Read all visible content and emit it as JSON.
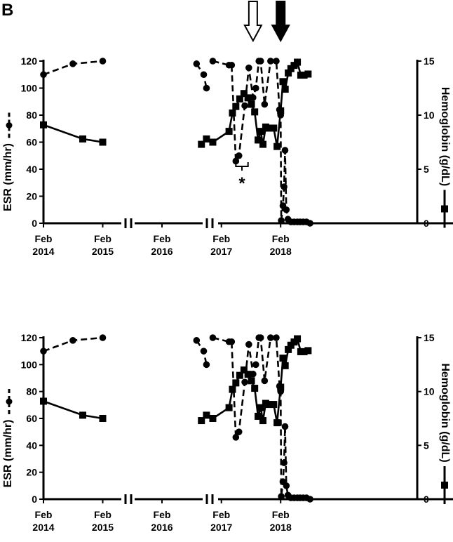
{
  "panel_label": "B",
  "chart_data": [
    {
      "type": "line",
      "title": "",
      "ylabel": "ESR (mm/hr)",
      "y2label": "Hemoglobin (g/dL)",
      "ylim": [
        0,
        120
      ],
      "y2lim": [
        0,
        15
      ],
      "yticks": [
        0,
        20,
        40,
        60,
        80,
        100,
        120
      ],
      "y2ticks": [
        0,
        5,
        10,
        15
      ],
      "axis_breaks": true,
      "xlim": [
        "2014-02-01",
        "2018-08-15"
      ],
      "xticks": [
        {
          "date": "2014-02-01",
          "line1": "Feb",
          "line2": "2014"
        },
        {
          "date": "2015-02-01",
          "line1": "Feb",
          "line2": "2015"
        },
        {
          "date": "2016-02-01",
          "line1": "Feb",
          "line2": "2016"
        },
        {
          "date": "2017-02-01",
          "line1": "Feb",
          "line2": "2017"
        },
        {
          "date": "2018-02-01",
          "line1": "Feb",
          "line2": "2018"
        }
      ],
      "annotations": [
        {
          "kind": "open-arrow",
          "date": "2017-08-15"
        },
        {
          "kind": "filled-arrow",
          "date": "2018-02-01"
        },
        {
          "kind": "bracket",
          "from": "2017-05-01",
          "to": "2017-07-15",
          "text": "*"
        }
      ],
      "series": [
        {
          "style": "dashed",
          "marker": "circle",
          "axis": "left",
          "points": [
            {
              "x": "2014-02-01",
              "y": 110
            },
            {
              "x": "2014-08-01",
              "y": 118
            },
            {
              "x": "2015-02-01",
              "y": 120
            },
            {
              "x": "2016-09-01",
              "y": 118
            },
            {
              "x": "2016-10-15",
              "y": 110
            },
            {
              "x": "2016-11-01",
              "y": 100
            },
            {
              "x": "2016-12-10",
              "y": 120
            },
            {
              "x": "2017-03-20",
              "y": 117
            },
            {
              "x": "2017-04-05",
              "y": 117
            },
            {
              "x": "2017-05-01",
              "y": 46
            },
            {
              "x": "2017-05-20",
              "y": 50
            },
            {
              "x": "2017-06-25",
              "y": 87
            },
            {
              "x": "2017-07-20",
              "y": 115
            },
            {
              "x": "2017-08-15",
              "y": 93
            },
            {
              "x": "2017-09-01",
              "y": 100
            },
            {
              "x": "2017-09-20",
              "y": 120
            },
            {
              "x": "2017-10-01",
              "y": 120
            },
            {
              "x": "2017-10-25",
              "y": 88
            },
            {
              "x": "2017-12-01",
              "y": 120
            },
            {
              "x": "2018-01-05",
              "y": 120
            },
            {
              "x": "2018-01-25",
              "y": 84
            },
            {
              "x": "2018-02-01",
              "y": 80
            },
            {
              "x": "2018-02-05",
              "y": 2
            },
            {
              "x": "2018-02-15",
              "y": 13
            },
            {
              "x": "2018-02-22",
              "y": 27
            },
            {
              "x": "2018-02-28",
              "y": 54
            },
            {
              "x": "2018-03-08",
              "y": 10
            },
            {
              "x": "2018-03-18",
              "y": 3
            },
            {
              "x": "2018-04-05",
              "y": 1
            },
            {
              "x": "2018-04-25",
              "y": 1
            },
            {
              "x": "2018-05-15",
              "y": 1
            },
            {
              "x": "2018-06-01",
              "y": 1
            },
            {
              "x": "2018-06-20",
              "y": 1
            },
            {
              "x": "2018-07-10",
              "y": 1
            },
            {
              "x": "2018-08-01",
              "y": 0
            }
          ]
        },
        {
          "style": "solid",
          "marker": "square",
          "axis": "right",
          "points": [
            {
              "x": "2014-02-01",
              "y": 9.1
            },
            {
              "x": "2014-10-01",
              "y": 7.8
            },
            {
              "x": "2015-02-01",
              "y": 7.5
            },
            {
              "x": "2016-10-01",
              "y": 7.3
            },
            {
              "x": "2016-11-01",
              "y": 7.8
            },
            {
              "x": "2016-12-10",
              "y": 7.5
            },
            {
              "x": "2017-03-20",
              "y": 8.5
            },
            {
              "x": "2017-04-10",
              "y": 10.2
            },
            {
              "x": "2017-05-01",
              "y": 10.8
            },
            {
              "x": "2017-05-25",
              "y": 11.5
            },
            {
              "x": "2017-06-20",
              "y": 12.0
            },
            {
              "x": "2017-07-15",
              "y": 11.6
            },
            {
              "x": "2017-08-05",
              "y": 11.0
            },
            {
              "x": "2017-08-25",
              "y": 10.3
            },
            {
              "x": "2017-09-15",
              "y": 7.7
            },
            {
              "x": "2017-10-01",
              "y": 8.5
            },
            {
              "x": "2017-10-15",
              "y": 7.3
            },
            {
              "x": "2017-11-01",
              "y": 8.9
            },
            {
              "x": "2017-11-20",
              "y": 8.8
            },
            {
              "x": "2017-12-20",
              "y": 8.8
            },
            {
              "x": "2018-01-10",
              "y": 7.1
            },
            {
              "x": "2018-02-01",
              "y": 10.4
            },
            {
              "x": "2018-02-15",
              "y": 13.1
            },
            {
              "x": "2018-03-01",
              "y": 12.4
            },
            {
              "x": "2018-03-20",
              "y": 13.9
            },
            {
              "x": "2018-04-05",
              "y": 14.3
            },
            {
              "x": "2018-04-25",
              "y": 14.6
            },
            {
              "x": "2018-05-15",
              "y": 14.9
            },
            {
              "x": "2018-06-05",
              "y": 13.7
            },
            {
              "x": "2018-06-25",
              "y": 13.7
            },
            {
              "x": "2018-07-20",
              "y": 13.8
            }
          ]
        }
      ]
    },
    {
      "type": "line",
      "title": "",
      "ylabel": "ESR (mm/hr)",
      "y2label": "Hemoglobin (g/dL)",
      "ylim": [
        0,
        120
      ],
      "y2lim": [
        0,
        15
      ],
      "yticks": [
        0,
        20,
        40,
        60,
        80,
        100,
        120
      ],
      "y2ticks": [
        0,
        5,
        10,
        15
      ],
      "axis_breaks": true,
      "xlim": [
        "2014-02-01",
        "2018-08-15"
      ],
      "xticks": [
        {
          "date": "2014-02-01",
          "line1": "Feb",
          "line2": "2014"
        },
        {
          "date": "2015-02-01",
          "line1": "Feb",
          "line2": "2015"
        },
        {
          "date": "2016-02-01",
          "line1": "Feb",
          "line2": "2016"
        },
        {
          "date": "2017-02-01",
          "line1": "Feb",
          "line2": "2017"
        },
        {
          "date": "2018-02-01",
          "line1": "Feb",
          "line2": "2018"
        }
      ],
      "annotations": [],
      "series": [
        {
          "style": "dashed",
          "marker": "circle",
          "axis": "left",
          "points": [
            {
              "x": "2014-02-01",
              "y": 110
            },
            {
              "x": "2014-08-01",
              "y": 118
            },
            {
              "x": "2015-02-01",
              "y": 120
            },
            {
              "x": "2016-09-01",
              "y": 118
            },
            {
              "x": "2016-10-15",
              "y": 110
            },
            {
              "x": "2016-11-01",
              "y": 100
            },
            {
              "x": "2016-12-10",
              "y": 120
            },
            {
              "x": "2017-03-20",
              "y": 117
            },
            {
              "x": "2017-04-05",
              "y": 117
            },
            {
              "x": "2017-05-01",
              "y": 46
            },
            {
              "x": "2017-05-20",
              "y": 50
            },
            {
              "x": "2017-06-25",
              "y": 87
            },
            {
              "x": "2017-07-20",
              "y": 115
            },
            {
              "x": "2017-08-15",
              "y": 93
            },
            {
              "x": "2017-09-01",
              "y": 100
            },
            {
              "x": "2017-09-20",
              "y": 120
            },
            {
              "x": "2017-10-01",
              "y": 120
            },
            {
              "x": "2017-10-25",
              "y": 88
            },
            {
              "x": "2017-12-01",
              "y": 120
            },
            {
              "x": "2018-01-05",
              "y": 120
            },
            {
              "x": "2018-01-25",
              "y": 84
            },
            {
              "x": "2018-02-01",
              "y": 80
            },
            {
              "x": "2018-02-05",
              "y": 2
            },
            {
              "x": "2018-02-15",
              "y": 13
            },
            {
              "x": "2018-02-22",
              "y": 27
            },
            {
              "x": "2018-02-28",
              "y": 54
            },
            {
              "x": "2018-03-08",
              "y": 10
            },
            {
              "x": "2018-03-18",
              "y": 3
            },
            {
              "x": "2018-04-05",
              "y": 1
            },
            {
              "x": "2018-04-25",
              "y": 1
            },
            {
              "x": "2018-05-15",
              "y": 1
            },
            {
              "x": "2018-06-01",
              "y": 1
            },
            {
              "x": "2018-06-20",
              "y": 1
            },
            {
              "x": "2018-07-10",
              "y": 1
            },
            {
              "x": "2018-08-01",
              "y": 0
            }
          ]
        },
        {
          "style": "solid",
          "marker": "square",
          "axis": "right",
          "points": [
            {
              "x": "2014-02-01",
              "y": 9.1
            },
            {
              "x": "2014-10-01",
              "y": 7.8
            },
            {
              "x": "2015-02-01",
              "y": 7.5
            },
            {
              "x": "2016-10-01",
              "y": 7.3
            },
            {
              "x": "2016-11-01",
              "y": 7.8
            },
            {
              "x": "2016-12-10",
              "y": 7.5
            },
            {
              "x": "2017-03-20",
              "y": 8.5
            },
            {
              "x": "2017-04-10",
              "y": 10.2
            },
            {
              "x": "2017-05-01",
              "y": 10.8
            },
            {
              "x": "2017-05-25",
              "y": 11.5
            },
            {
              "x": "2017-06-20",
              "y": 12.0
            },
            {
              "x": "2017-07-15",
              "y": 11.6
            },
            {
              "x": "2017-08-05",
              "y": 11.0
            },
            {
              "x": "2017-08-25",
              "y": 10.3
            },
            {
              "x": "2017-09-15",
              "y": 7.7
            },
            {
              "x": "2017-10-01",
              "y": 8.5
            },
            {
              "x": "2017-10-15",
              "y": 7.3
            },
            {
              "x": "2017-11-01",
              "y": 8.9
            },
            {
              "x": "2017-11-20",
              "y": 8.8
            },
            {
              "x": "2017-12-20",
              "y": 8.8
            },
            {
              "x": "2018-01-10",
              "y": 7.1
            },
            {
              "x": "2018-02-01",
              "y": 10.4
            },
            {
              "x": "2018-02-15",
              "y": 13.1
            },
            {
              "x": "2018-03-01",
              "y": 12.4
            },
            {
              "x": "2018-03-20",
              "y": 13.9
            },
            {
              "x": "2018-04-05",
              "y": 14.3
            },
            {
              "x": "2018-04-25",
              "y": 14.6
            },
            {
              "x": "2018-05-15",
              "y": 14.9
            },
            {
              "x": "2018-06-05",
              "y": 13.7
            },
            {
              "x": "2018-06-25",
              "y": 13.7
            },
            {
              "x": "2018-07-20",
              "y": 13.8
            }
          ]
        }
      ]
    }
  ]
}
